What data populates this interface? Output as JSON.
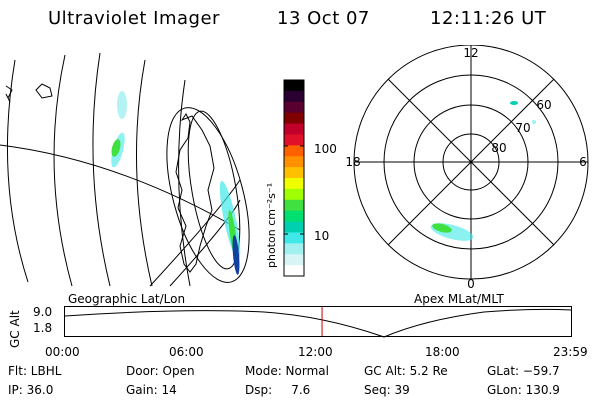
{
  "header": {
    "instrument": "Ultraviolet Imager",
    "date": "13 Oct 07",
    "time": "12:11:26 UT"
  },
  "colorbar": {
    "unit_label": "photon cm⁻²s⁻¹",
    "ticks": [
      "100",
      "10"
    ],
    "colors": [
      "#000000",
      "#2a0030",
      "#5a0030",
      "#800000",
      "#c0002a",
      "#e0102a",
      "#ff6000",
      "#ff9000",
      "#ffc000",
      "#f0ff00",
      "#a0ff00",
      "#40e040",
      "#00e070",
      "#00d0b0",
      "#40e8e8",
      "#a0f0f0",
      "#d8f4f4",
      "#ffffff"
    ]
  },
  "polar_plot": {
    "mlt_labels": {
      "top": "12",
      "right": "6",
      "bottom": "0",
      "left": "18"
    },
    "lat_labels": [
      "60",
      "70",
      "80"
    ]
  },
  "timeline": {
    "left_label": "Geographic Lat/Lon",
    "right_label": "Apex MLat/MLT",
    "axis_label": "GC Alt",
    "y_ticks": [
      "9.0",
      "1.8"
    ],
    "x_ticks": [
      "00:00",
      "06:00",
      "12:00",
      "18:00",
      "23:59"
    ],
    "current_time_fraction": 0.508
  },
  "info": {
    "filter": "Flt: LBHL",
    "ip": "IP: 36.0",
    "door": "Door: Open",
    "gain": "Gain: 14",
    "mode": "Mode: Normal",
    "dsp": "Dsp:     7.6",
    "gc_alt": "GC Alt: 5.2 Re",
    "seq": "Seq: 39",
    "glat": "GLat: −59.7",
    "glon": "GLon: 130.9"
  }
}
